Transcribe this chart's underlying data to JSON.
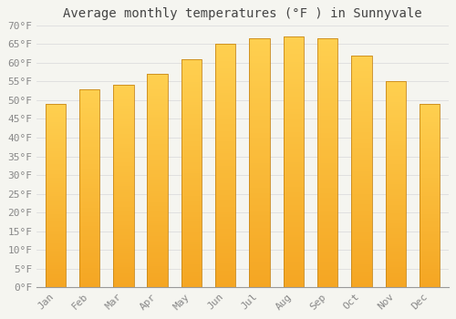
{
  "title": "Average monthly temperatures (°F ) in Sunnyvale",
  "months": [
    "Jan",
    "Feb",
    "Mar",
    "Apr",
    "May",
    "Jun",
    "Jul",
    "Aug",
    "Sep",
    "Oct",
    "Nov",
    "Dec"
  ],
  "values": [
    49,
    53,
    54,
    57,
    61,
    65,
    66.5,
    67,
    66.5,
    62,
    55,
    49
  ],
  "bar_color_top": "#FFD050",
  "bar_color_bottom": "#F5A623",
  "bar_edge_color": "#C8881A",
  "ylim": [
    0,
    70
  ],
  "ytick_step": 5,
  "background_color": "#F5F5F0",
  "grid_color": "#DDDDDD",
  "title_fontsize": 10,
  "tick_fontsize": 8,
  "font_family": "monospace"
}
